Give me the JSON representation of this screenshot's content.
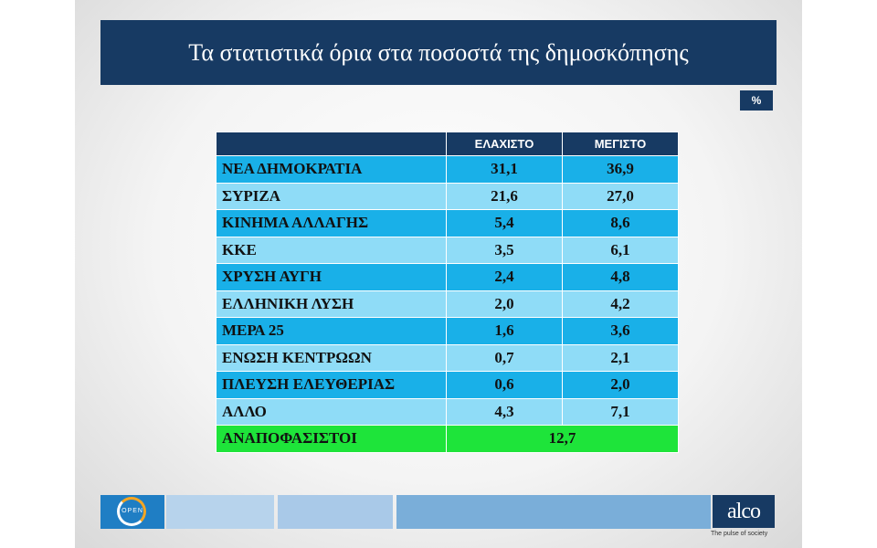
{
  "title": "Τα στατιστικά όρια στα ποσοστά της δημοσκόπησης",
  "unit_label": "%",
  "chart_data": {
    "type": "table",
    "columns": [
      "",
      "ΕΛΑΧΙΣΤΟ",
      "ΜΕΓΙΣΤΟ"
    ],
    "rows": [
      {
        "party": "ΝΕΑ ΔΗΜΟΚΡΑΤΙΑ",
        "min": "31,1",
        "max": "36,9"
      },
      {
        "party": "ΣΥΡΙΖΑ",
        "min": "21,6",
        "max": "27,0"
      },
      {
        "party": "ΚΙΝΗΜΑ ΑΛΛΑΓΗΣ",
        "min": "5,4",
        "max": "8,6"
      },
      {
        "party": "ΚΚΕ",
        "min": "3,5",
        "max": "6,1"
      },
      {
        "party": "ΧΡΥΣΗ ΑΥΓΗ",
        "min": "2,4",
        "max": "4,8"
      },
      {
        "party": "ΕΛΛΗΝΙΚΗ ΛΥΣΗ",
        "min": "2,0",
        "max": "4,2"
      },
      {
        "party": "ΜΕΡΑ 25",
        "min": "1,6",
        "max": "3,6"
      },
      {
        "party": "ΕΝΩΣΗ ΚΕΝΤΡΩΩΝ",
        "min": "0,7",
        "max": "2,1"
      },
      {
        "party": "ΠΛΕΥΣΗ ΕΛΕΥΘΕΡΙΑΣ",
        "min": "0,6",
        "max": "2,0"
      },
      {
        "party": "ΑΛΛΟ",
        "min": "4,3",
        "max": "7,1"
      }
    ],
    "undecided": {
      "label": "ΑΝΑΠΟΦΑΣΙΣΤΟΙ",
      "value": "12,7"
    }
  },
  "footer": {
    "open_logo_text": "OPEN",
    "brand": "alco",
    "tagline": "The pulse of society"
  },
  "colors": {
    "header_navy": "#173a63",
    "row_dark": "#19b0e8",
    "row_light": "#8fdcf7",
    "undecided_green": "#1ee43a",
    "footer_light": "#b7d3ec",
    "footer_mid": "#7aaed9"
  }
}
